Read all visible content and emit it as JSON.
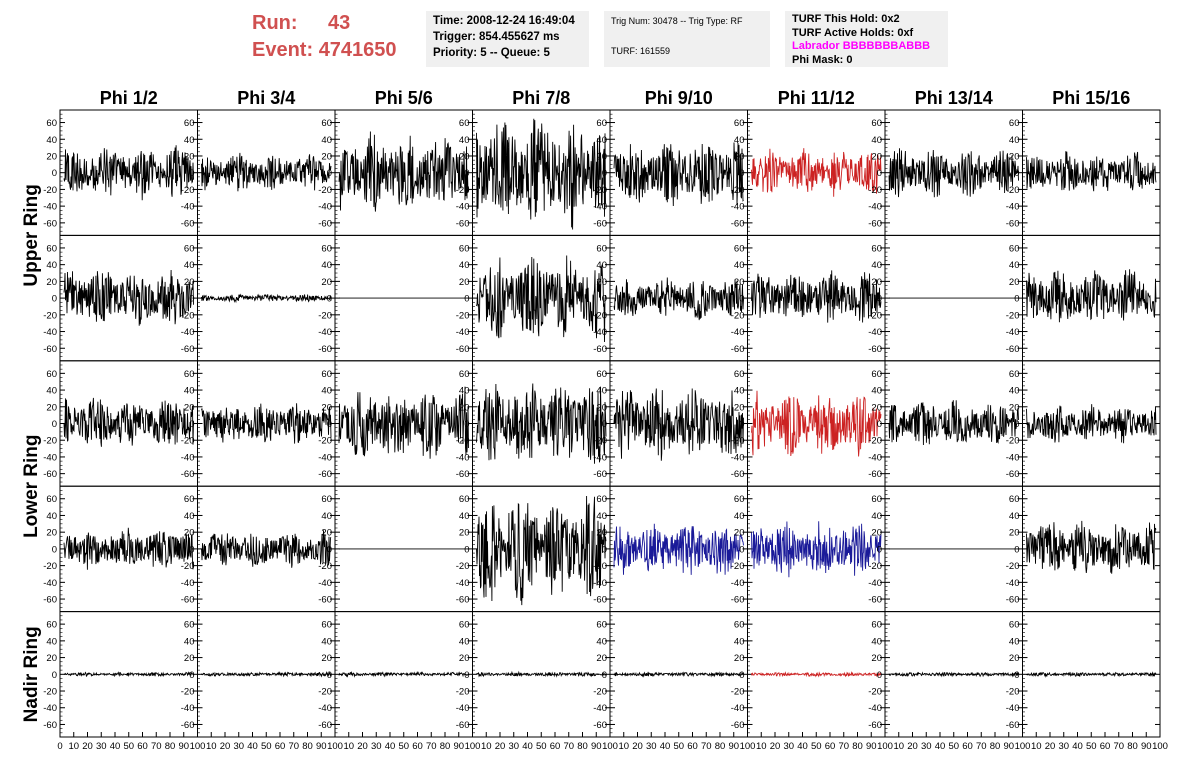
{
  "header": {
    "run_label": "Run:",
    "run_value": "43",
    "event_label": "Event:",
    "event_value": "4741650",
    "time": "Time: 2008-12-24 16:49:04",
    "trigger": "Trigger: 854.455627 ms",
    "priority": "Priority: 5 -- Queue: 5",
    "trig_num": "Trig Num: 30478 -- Trig Type: RF",
    "turf": "TURF: 161559",
    "turf_this_hold": "TURF This Hold: 0x2",
    "turf_active_holds": "TURF Active Holds: 0xf",
    "labrador": "Labrador BBBBBBBABBB",
    "phi_mask": "Phi Mask: 0"
  },
  "colors": {
    "run_text": "#d05050",
    "labrador_text": "#ff00ff",
    "trace_default": "#000000",
    "trace_red": "#cc2222",
    "trace_blue": "#1a1a99"
  },
  "chart_data": {
    "type": "line",
    "columns": [
      "Phi 1/2",
      "Phi 3/4",
      "Phi 5/6",
      "Phi 7/8",
      "Phi 9/10",
      "Phi 11/12",
      "Phi 13/14",
      "Phi 15/16"
    ],
    "ring_labels": [
      "Upper Ring",
      "Lower Ring",
      "Nadir Ring"
    ],
    "rows_per_ring": [
      2,
      2,
      1
    ],
    "y_ticks": [
      -60,
      -40,
      -20,
      0,
      20,
      40,
      60
    ],
    "x_tick_labels": [
      "0",
      "10",
      "20",
      "30",
      "40",
      "50",
      "60",
      "70",
      "80",
      "90",
      "100"
    ],
    "xlim": [
      0,
      100
    ],
    "ylim": [
      -75,
      75
    ],
    "traces": [
      [
        {
          "amp": 28,
          "color": "black"
        },
        {
          "amp": 20,
          "color": "black"
        },
        {
          "amp": 42,
          "color": "black"
        },
        {
          "amp": 58,
          "color": "black"
        },
        {
          "amp": 35,
          "color": "black"
        },
        {
          "amp": 25,
          "color": "red"
        },
        {
          "amp": 25,
          "color": "black"
        },
        {
          "amp": 22,
          "color": "black"
        }
      ],
      [
        {
          "amp": 30,
          "color": "black"
        },
        {
          "amp": 4,
          "color": "black"
        },
        {
          "amp": 0,
          "color": "black"
        },
        {
          "amp": 45,
          "color": "black"
        },
        {
          "amp": 22,
          "color": "black"
        },
        {
          "amp": 28,
          "color": "black"
        },
        {
          "amp": 0,
          "color": "black"
        },
        {
          "amp": 30,
          "color": "black"
        }
      ],
      [
        {
          "amp": 28,
          "color": "black"
        },
        {
          "amp": 22,
          "color": "black"
        },
        {
          "amp": 38,
          "color": "black"
        },
        {
          "amp": 45,
          "color": "black"
        },
        {
          "amp": 38,
          "color": "black"
        },
        {
          "amp": 34,
          "color": "red"
        },
        {
          "amp": 25,
          "color": "black"
        },
        {
          "amp": 20,
          "color": "black"
        }
      ],
      [
        {
          "amp": 22,
          "color": "black"
        },
        {
          "amp": 20,
          "color": "black"
        },
        {
          "amp": 0,
          "color": "black"
        },
        {
          "amp": 58,
          "color": "black"
        },
        {
          "amp": 28,
          "color": "blue"
        },
        {
          "amp": 30,
          "color": "blue"
        },
        {
          "amp": 0,
          "color": "black"
        },
        {
          "amp": 30,
          "color": "black"
        }
      ],
      [
        {
          "amp": 2,
          "color": "black"
        },
        {
          "amp": 2,
          "color": "black"
        },
        {
          "amp": 2,
          "color": "black"
        },
        {
          "amp": 2,
          "color": "black"
        },
        {
          "amp": 2,
          "color": "black"
        },
        {
          "amp": 2,
          "color": "red"
        },
        {
          "amp": 2,
          "color": "black"
        },
        {
          "amp": 2,
          "color": "black"
        }
      ]
    ]
  }
}
